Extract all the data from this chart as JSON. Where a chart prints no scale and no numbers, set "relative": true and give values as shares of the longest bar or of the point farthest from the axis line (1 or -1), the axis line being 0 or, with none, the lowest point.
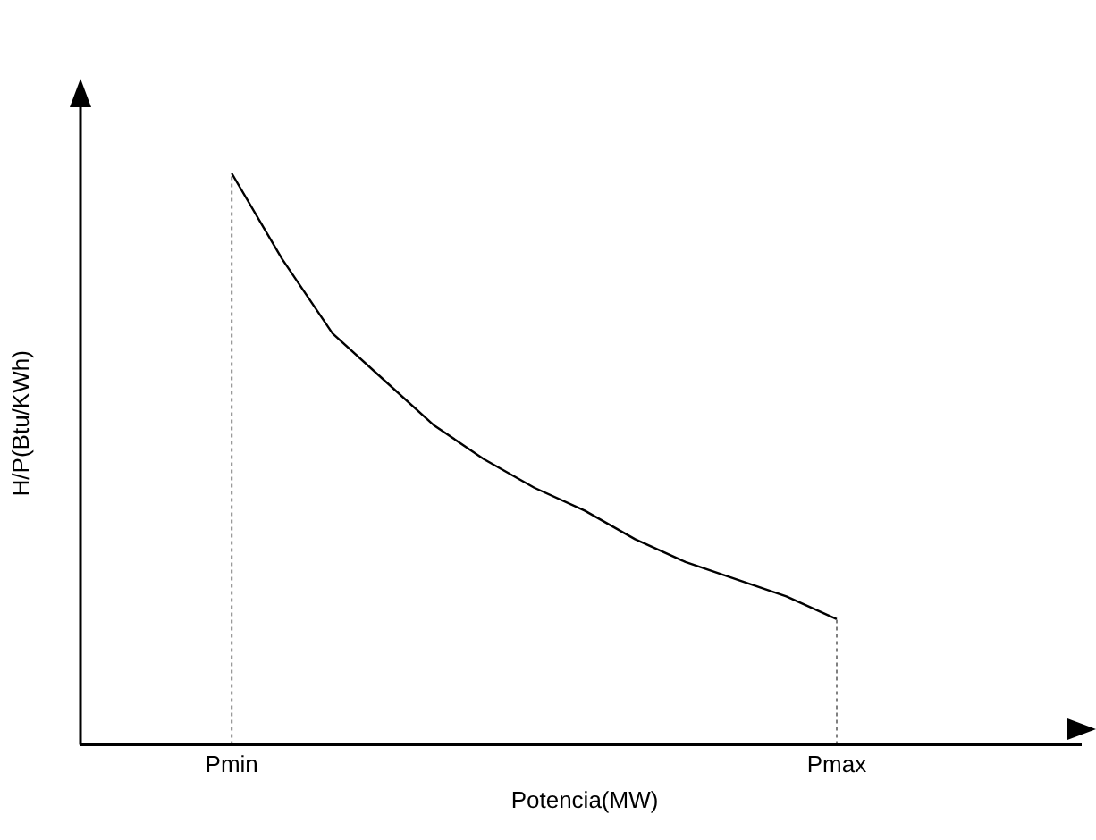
{
  "chart_data": {
    "type": "line",
    "relative": true,
    "xlabel": "Potencia(MW)",
    "ylabel": "H/P(Btu/KWh)",
    "categories": [
      null,
      null,
      null,
      "Pmin",
      null,
      null,
      null,
      null,
      null,
      null,
      null,
      null,
      null,
      null,
      null,
      "Pmax",
      null,
      null,
      null,
      null,
      null
    ],
    "series": [
      {
        "color": "#000000",
        "values": [
          null,
          null,
          null,
          1.0,
          0.85,
          0.72,
          0.64,
          0.56,
          0.5,
          0.45,
          0.41,
          0.36,
          0.32,
          0.29,
          0.26,
          0.22,
          null,
          null,
          null,
          null,
          null
        ]
      }
    ],
    "ref_lines": [
      {
        "axis": "x",
        "value": "Pmin",
        "color": "#808080",
        "line_style": "dotted"
      },
      {
        "axis": "x",
        "value": "Pmax",
        "color": "#808080",
        "line_style": "dotted"
      }
    ],
    "grid": false,
    "legend": false,
    "marker": "none",
    "line_style": "solid"
  }
}
